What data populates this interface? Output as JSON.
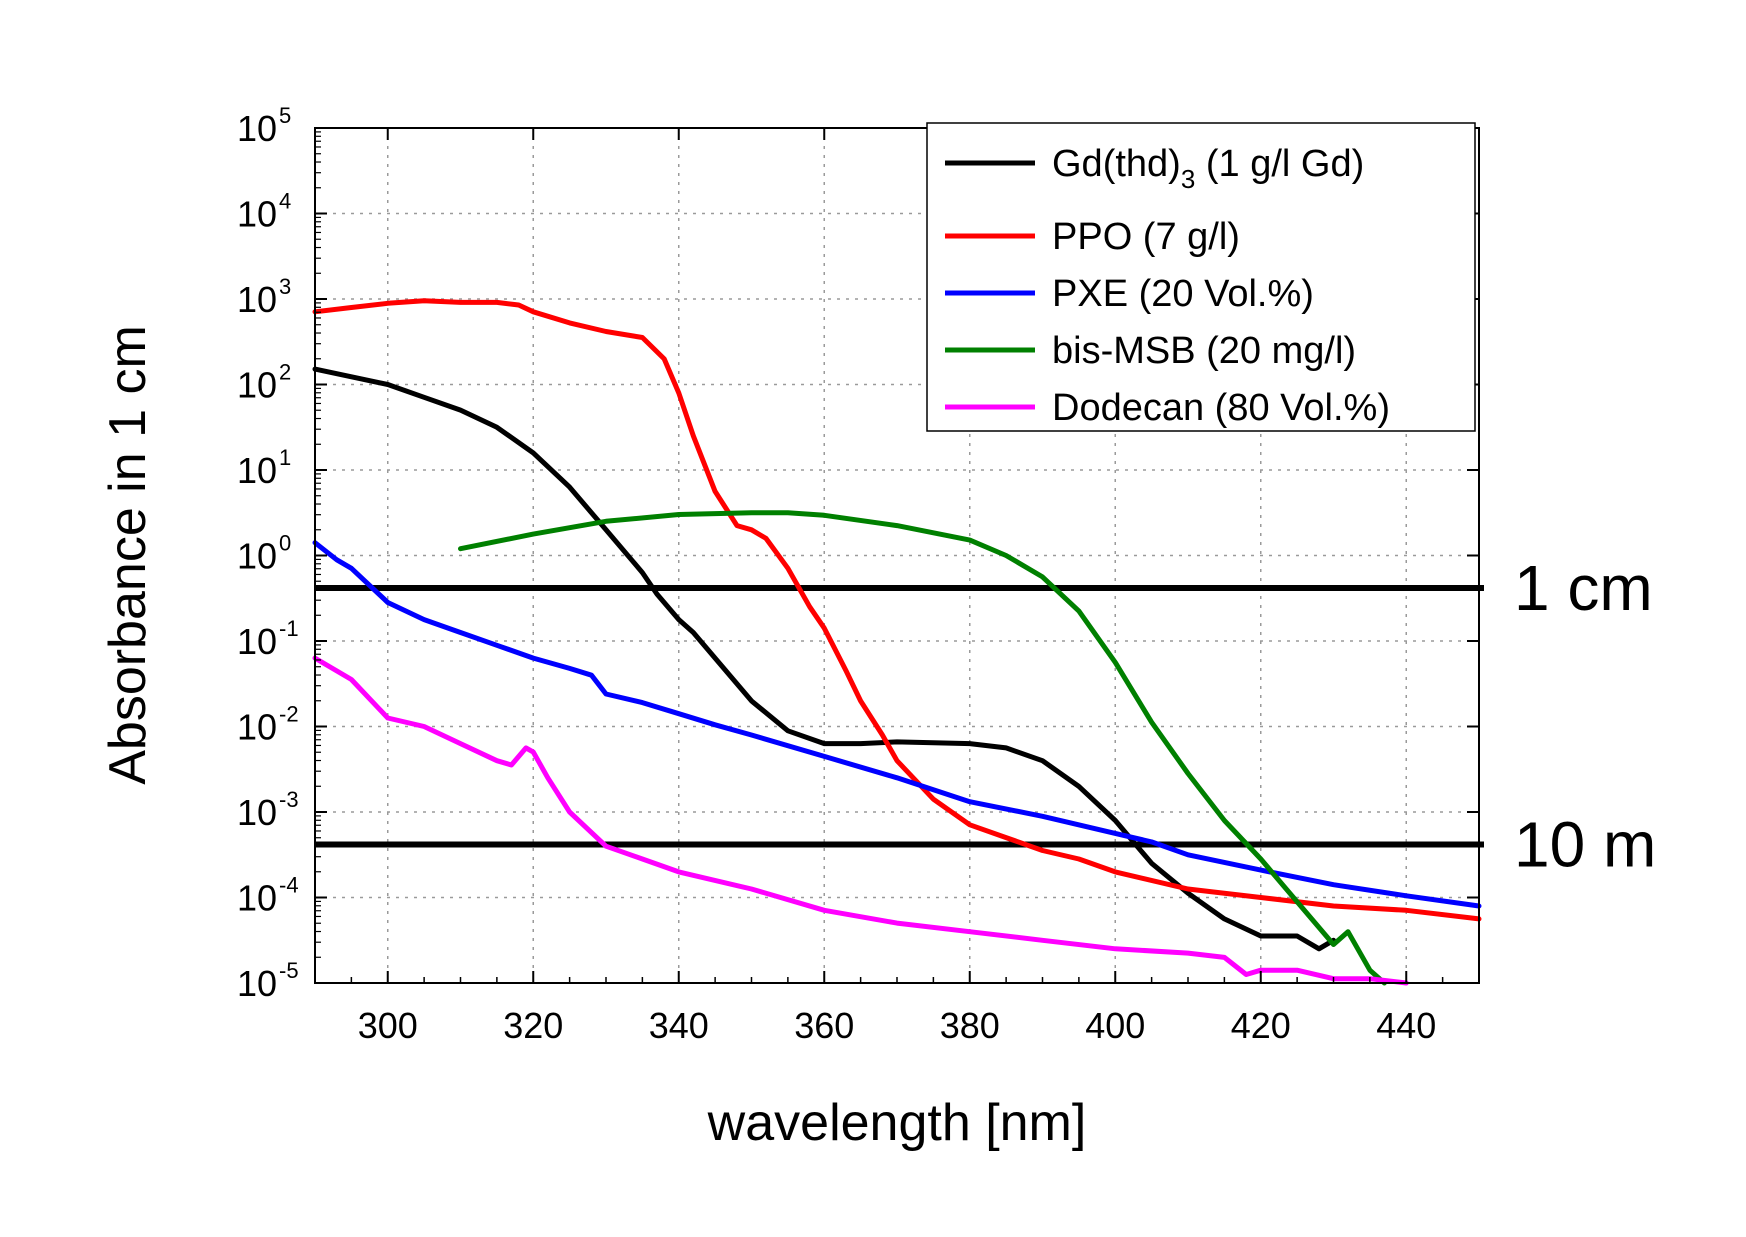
{
  "chart_data": {
    "type": "line",
    "xlabel": "wavelength [nm]",
    "ylabel": "Absorbance in 1 cm",
    "xlim": [
      290,
      450
    ],
    "ylim_log10": [
      -5,
      5
    ],
    "yscale": "log",
    "grid": true,
    "legend_position": "top-right",
    "x_ticks": [
      300,
      320,
      340,
      360,
      380,
      400,
      420,
      440
    ],
    "y_ticks": [
      {
        "base": "10",
        "exp": "-5",
        "log": -5
      },
      {
        "base": "10",
        "exp": "-4",
        "log": -4
      },
      {
        "base": "10",
        "exp": "-3",
        "log": -3
      },
      {
        "base": "10",
        "exp": "-2",
        "log": -2
      },
      {
        "base": "10",
        "exp": "-1",
        "log": -1
      },
      {
        "base": "10",
        "exp": "0",
        "log": 0
      },
      {
        "base": "10",
        "exp": "1",
        "log": 1
      },
      {
        "base": "10",
        "exp": "2",
        "log": 2
      },
      {
        "base": "10",
        "exp": "3",
        "log": 3
      },
      {
        "base": "10",
        "exp": "4",
        "log": 4
      },
      {
        "base": "10",
        "exp": "5",
        "log": 5
      }
    ],
    "reference_lines": [
      {
        "label": "1 cm",
        "log10_y": -0.38
      },
      {
        "label": "10 m",
        "log10_y": -3.38
      }
    ],
    "series": [
      {
        "name": "Gd(thd)3 (1 g/l Gd)",
        "legend_main": "Gd(thd)",
        "legend_sub": "3",
        "legend_rest": " (1 g/l Gd)",
        "color": "#000000",
        "x": [
          290,
          300,
          305,
          310,
          315,
          320,
          325,
          330,
          335,
          337,
          340,
          342,
          345,
          350,
          355,
          360,
          365,
          370,
          380,
          385,
          390,
          395,
          400,
          405,
          410,
          415,
          420,
          425,
          428,
          430
        ],
        "log10_y": [
          2.18,
          2.0,
          1.85,
          1.7,
          1.5,
          1.2,
          0.8,
          0.3,
          -0.2,
          -0.45,
          -0.75,
          -0.9,
          -1.2,
          -1.7,
          -2.05,
          -2.2,
          -2.2,
          -2.18,
          -2.2,
          -2.25,
          -2.4,
          -2.7,
          -3.1,
          -3.6,
          -3.95,
          -4.25,
          -4.45,
          -4.45,
          -4.6,
          -4.5
        ]
      },
      {
        "name": "PPO (7 g/l)",
        "legend_main": "PPO (7 g/l)",
        "legend_sub": "",
        "legend_rest": "",
        "color": "#ff0000",
        "x": [
          290,
          295,
          300,
          305,
          310,
          315,
          318,
          320,
          325,
          330,
          335,
          338,
          340,
          342,
          345,
          348,
          350,
          352,
          355,
          358,
          360,
          363,
          365,
          368,
          370,
          375,
          380,
          385,
          390,
          395,
          400,
          410,
          420,
          430,
          440,
          450
        ],
        "log10_y": [
          2.85,
          2.9,
          2.95,
          2.98,
          2.96,
          2.96,
          2.93,
          2.85,
          2.72,
          2.62,
          2.55,
          2.3,
          1.9,
          1.4,
          0.75,
          0.35,
          0.3,
          0.2,
          -0.15,
          -0.6,
          -0.85,
          -1.35,
          -1.7,
          -2.1,
          -2.4,
          -2.85,
          -3.15,
          -3.3,
          -3.45,
          -3.55,
          -3.7,
          -3.9,
          -4.0,
          -4.1,
          -4.15,
          -4.25
        ]
      },
      {
        "name": "PXE (20 Vol.%)",
        "legend_main": "PXE (20 Vol.%)",
        "legend_sub": "",
        "legend_rest": "",
        "color": "#0000ff",
        "x": [
          290,
          293,
          295,
          300,
          305,
          310,
          315,
          320,
          325,
          328,
          330,
          335,
          340,
          345,
          350,
          360,
          370,
          380,
          390,
          400,
          405,
          410,
          420,
          430,
          440,
          450
        ],
        "log10_y": [
          0.15,
          -0.05,
          -0.15,
          -0.55,
          -0.75,
          -0.9,
          -1.05,
          -1.2,
          -1.32,
          -1.4,
          -1.62,
          -1.72,
          -1.85,
          -1.98,
          -2.1,
          -2.35,
          -2.6,
          -2.88,
          -3.05,
          -3.25,
          -3.35,
          -3.5,
          -3.68,
          -3.85,
          -3.98,
          -4.1
        ]
      },
      {
        "name": "bis-MSB (20 mg/l)",
        "legend_main": "bis-MSB (20 mg/l)",
        "legend_sub": "",
        "legend_rest": "",
        "color": "#008000",
        "x": [
          310,
          320,
          330,
          340,
          350,
          355,
          360,
          370,
          380,
          385,
          390,
          395,
          400,
          405,
          410,
          415,
          420,
          425,
          430,
          432,
          435,
          437
        ],
        "log10_y": [
          0.08,
          0.25,
          0.4,
          0.48,
          0.5,
          0.5,
          0.47,
          0.35,
          0.18,
          0.0,
          -0.25,
          -0.65,
          -1.25,
          -1.95,
          -2.55,
          -3.1,
          -3.55,
          -4.05,
          -4.55,
          -4.4,
          -4.85,
          -5.0
        ]
      },
      {
        "name": "Dodecan (80 Vol.%)",
        "legend_main": "Dodecan (80 Vol.%)",
        "legend_sub": "",
        "legend_rest": "",
        "color": "#ff00ff",
        "x": [
          290,
          295,
          300,
          305,
          310,
          315,
          317,
          319,
          320,
          322,
          325,
          330,
          335,
          340,
          350,
          360,
          370,
          380,
          390,
          400,
          410,
          415,
          418,
          420,
          425,
          430,
          435,
          440
        ],
        "log10_y": [
          -1.2,
          -1.45,
          -1.9,
          -2.0,
          -2.2,
          -2.4,
          -2.45,
          -2.25,
          -2.3,
          -2.6,
          -3.0,
          -3.4,
          -3.55,
          -3.7,
          -3.9,
          -4.15,
          -4.3,
          -4.4,
          -4.5,
          -4.6,
          -4.65,
          -4.7,
          -4.9,
          -4.85,
          -4.85,
          -4.95,
          -4.95,
          -5.0
        ]
      }
    ]
  }
}
